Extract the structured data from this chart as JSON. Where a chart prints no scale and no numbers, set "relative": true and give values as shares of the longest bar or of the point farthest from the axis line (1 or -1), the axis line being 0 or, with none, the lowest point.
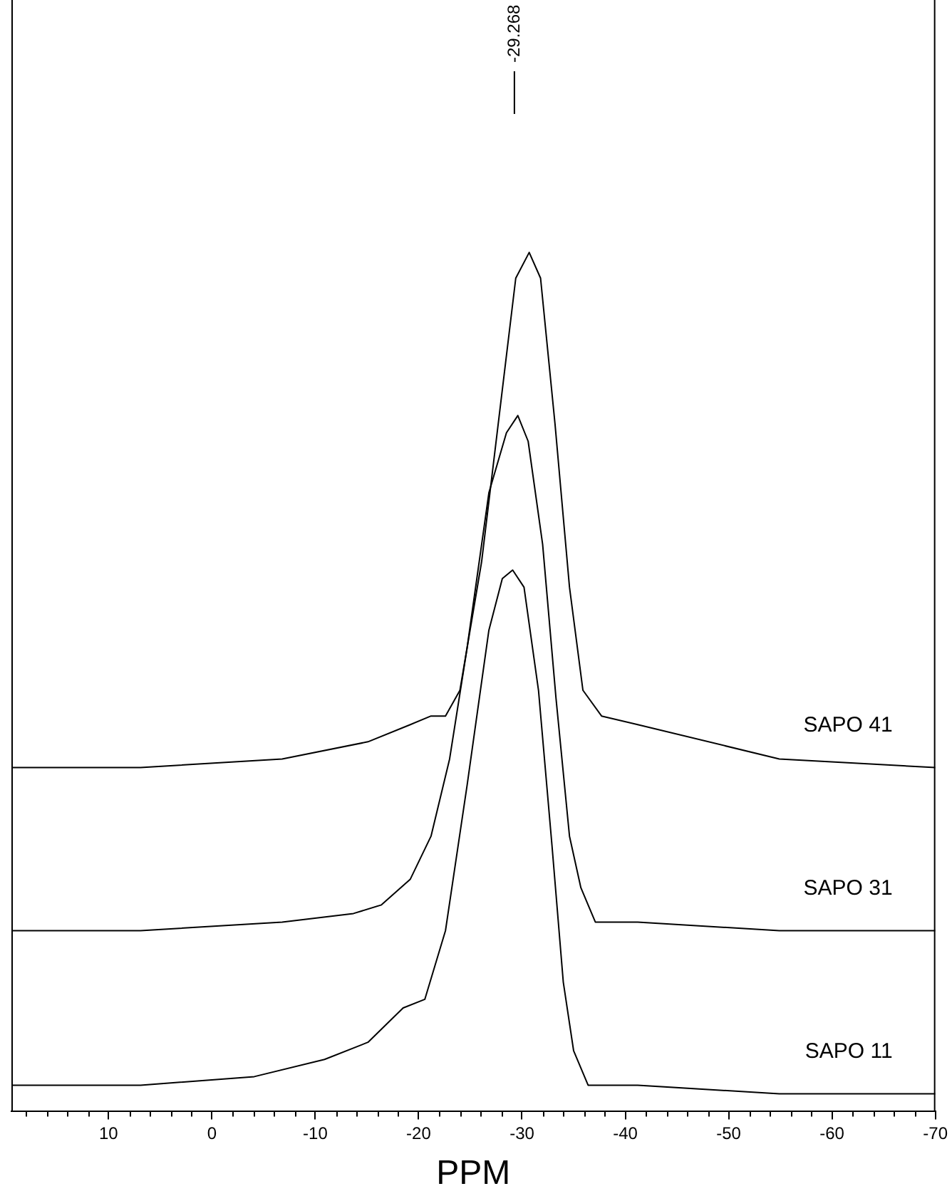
{
  "chart_data": {
    "type": "line",
    "xlabel": "PPM",
    "relative": true,
    "xlim": [
      19.4,
      -70
    ],
    "xticks": [
      {
        "value": 18,
        "label": null
      },
      {
        "value": 16,
        "label": null
      },
      {
        "value": 14,
        "label": null
      },
      {
        "value": 12,
        "label": null
      },
      10,
      {
        "value": 8,
        "label": null
      },
      {
        "value": 6,
        "label": null
      },
      {
        "value": 4,
        "label": null
      },
      {
        "value": 2,
        "label": null
      },
      0,
      {
        "value": -2,
        "label": null
      },
      {
        "value": -4,
        "label": null
      },
      {
        "value": -6,
        "label": null
      },
      {
        "value": -8,
        "label": null
      },
      -10,
      {
        "value": -12,
        "label": null
      },
      {
        "value": -14,
        "label": null
      },
      {
        "value": -16,
        "label": null
      },
      {
        "value": -18,
        "label": null
      },
      -20,
      {
        "value": -22,
        "label": null
      },
      {
        "value": -24,
        "label": null
      },
      {
        "value": -26,
        "label": null
      },
      {
        "value": -28,
        "label": null
      },
      -30,
      {
        "value": -32,
        "label": null
      },
      {
        "value": -34,
        "label": null
      },
      {
        "value": -36,
        "label": null
      },
      {
        "value": -38,
        "label": null
      },
      -40,
      {
        "value": -42,
        "label": null
      },
      {
        "value": -44,
        "label": null
      },
      {
        "value": -46,
        "label": null
      },
      {
        "value": -48,
        "label": null
      },
      -50,
      {
        "value": -52,
        "label": null
      },
      {
        "value": -54,
        "label": null
      },
      {
        "value": -56,
        "label": null
      },
      {
        "value": -58,
        "label": null
      },
      -60,
      {
        "value": -62,
        "label": null
      },
      {
        "value": -64,
        "label": null
      },
      {
        "value": -66,
        "label": null
      },
      {
        "value": -68,
        "label": null
      },
      -70
    ],
    "tick_labels": "x",
    "grid": false,
    "legend": false,
    "marker": "none",
    "line_style": "solid",
    "ref_lines": [
      {
        "axis": "x",
        "value": -29.268,
        "label": "-29.268",
        "color": "#000000"
      }
    ],
    "series": [
      {
        "name": "SAPO 41",
        "color": "#000000",
        "x": [
          19.3,
          6.9,
          -6.8,
          -15.1,
          -19.2,
          -21.2,
          -22.6,
          -24,
          -26.1,
          -28.1,
          -29.4,
          -30.7,
          -31.8,
          -33.2,
          -34.6,
          -35.9,
          -37.7,
          -41.2,
          -54.9,
          -70
        ],
        "values": [
          0.4,
          0.4,
          0.41,
          0.43,
          0.45,
          0.46,
          0.46,
          0.49,
          0.64,
          0.84,
          0.97,
          1,
          0.97,
          0.8,
          0.61,
          0.49,
          0.46,
          0.45,
          0.41,
          0.4
        ]
      },
      {
        "name": "SAPO 31",
        "color": "#000000",
        "x": [
          19.3,
          6.9,
          -6.8,
          -13.7,
          -16.4,
          -19.2,
          -21.2,
          -23,
          -24.7,
          -26.8,
          -28.5,
          -29.6,
          -30.6,
          -32,
          -33.3,
          -34.6,
          -35.7,
          -37.1,
          -41.2,
          -54.9,
          -70
        ],
        "values": [
          0.21,
          0.21,
          0.22,
          0.23,
          0.24,
          0.27,
          0.32,
          0.41,
          0.54,
          0.72,
          0.79,
          0.81,
          0.78,
          0.66,
          0.48,
          0.32,
          0.26,
          0.22,
          0.22,
          0.21,
          0.21
        ]
      },
      {
        "name": "SAPO 11",
        "color": "#000000",
        "x": [
          19.3,
          6.9,
          -4.1,
          -10.9,
          -15.1,
          -18.5,
          -20.6,
          -22.6,
          -24.7,
          -26.8,
          -28.1,
          -29.1,
          -30.2,
          -31.6,
          -32.9,
          -34,
          -35,
          -36.4,
          -41.2,
          -54.9,
          -70
        ],
        "values": [
          0.03,
          0.03,
          0.04,
          0.06,
          0.08,
          0.12,
          0.13,
          0.21,
          0.38,
          0.56,
          0.62,
          0.63,
          0.61,
          0.49,
          0.31,
          0.15,
          0.07,
          0.03,
          0.03,
          0.02,
          0.02
        ]
      }
    ]
  }
}
